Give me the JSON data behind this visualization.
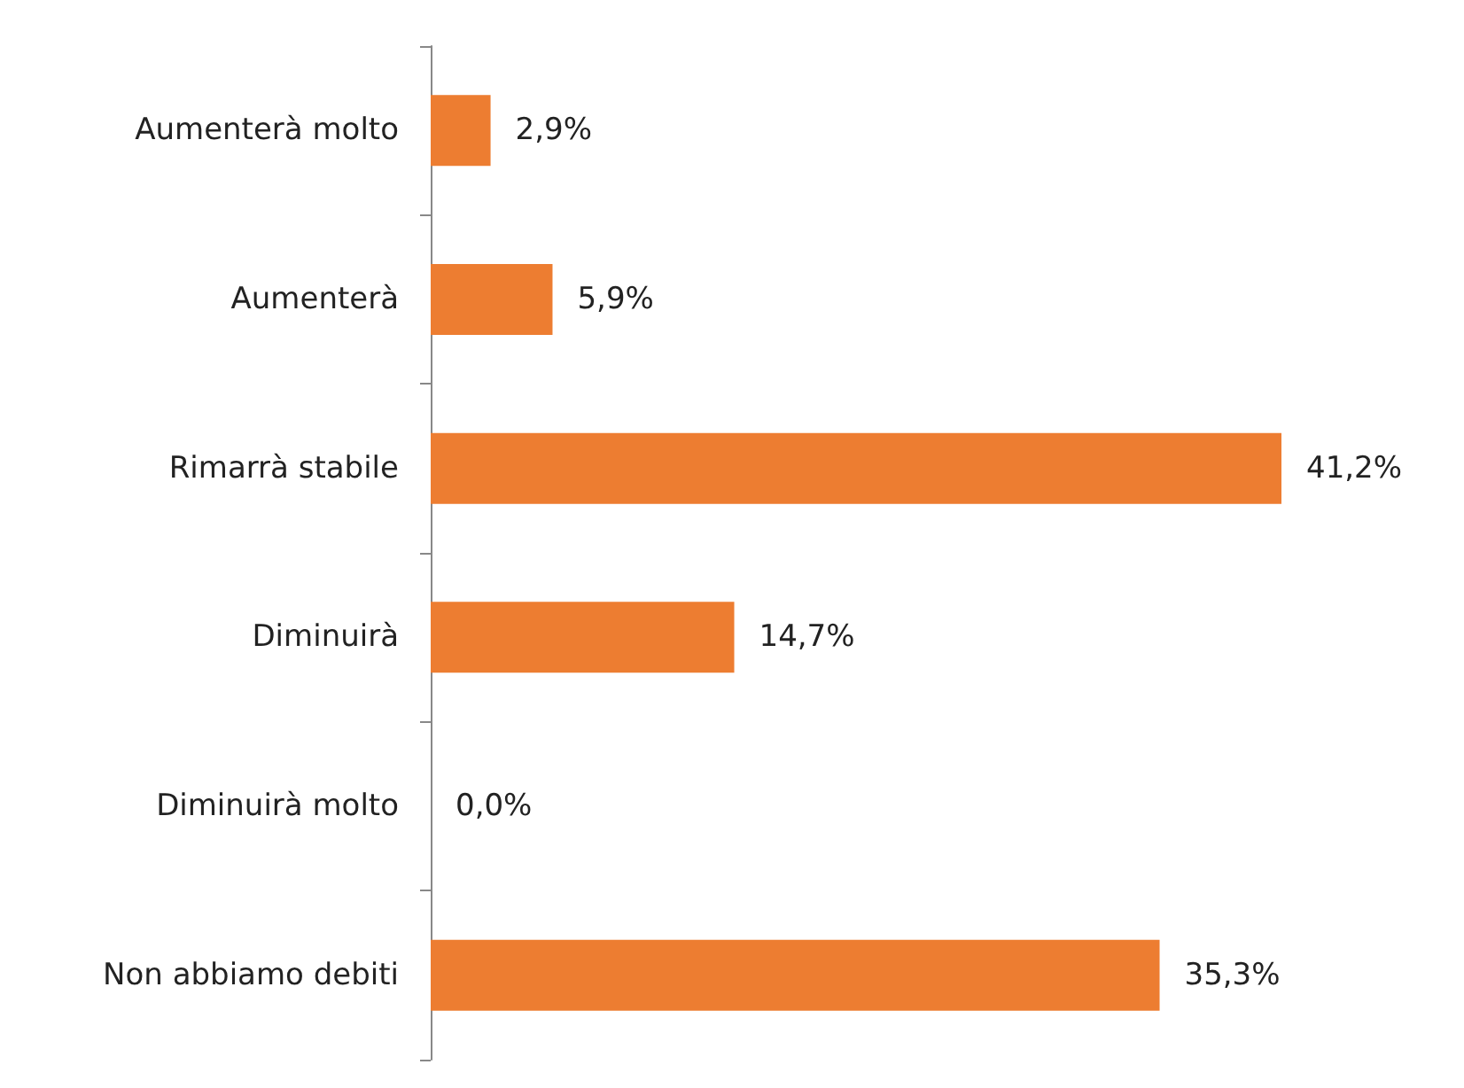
{
  "chart_data": {
    "type": "bar",
    "orientation": "horizontal",
    "categories": [
      "Aumenterà molto",
      "Aumenterà",
      "Rimarrà stabile",
      "Diminuirà",
      "Diminuirà molto",
      "Non abbiamo debiti"
    ],
    "values": [
      2.9,
      5.9,
      41.2,
      14.7,
      0.0,
      35.3
    ],
    "value_labels": [
      "2,9%",
      "5,9%",
      "41,2%",
      "14,7%",
      "0,0%",
      "35,3%"
    ],
    "color": "#ed7d31",
    "grid": false
  }
}
